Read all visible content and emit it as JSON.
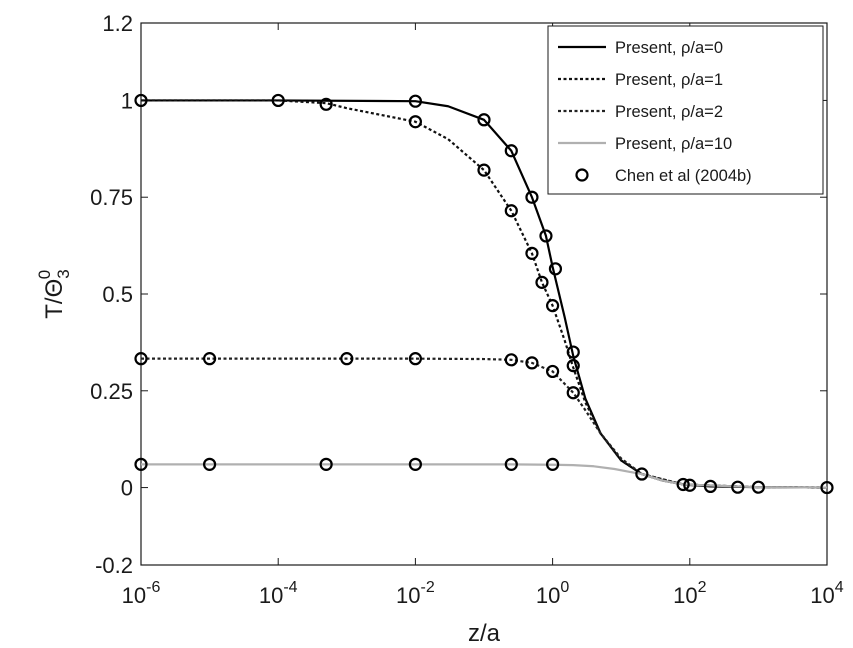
{
  "chart_data": {
    "type": "line",
    "xscale": "log",
    "xlim": [
      1e-06,
      10000
    ],
    "ylim": [
      -0.2,
      1.2
    ],
    "xlabel": "z/a",
    "ylabel": "T/Θ",
    "ylabel_sup": "0",
    "ylabel_sub": "3",
    "xticks": [
      {
        "value": 1e-06,
        "base": "10",
        "exp": "-6"
      },
      {
        "value": 0.0001,
        "base": "10",
        "exp": "-4"
      },
      {
        "value": 0.01,
        "base": "10",
        "exp": "-2"
      },
      {
        "value": 1,
        "base": "10",
        "exp": "0"
      },
      {
        "value": 100,
        "base": "10",
        "exp": "2"
      },
      {
        "value": 10000,
        "base": "10",
        "exp": "4"
      }
    ],
    "yticks": [
      {
        "value": -0.2,
        "label": "-0.2"
      },
      {
        "value": 0,
        "label": "0"
      },
      {
        "value": 0.25,
        "label": "0.25"
      },
      {
        "value": 0.5,
        "label": "0.5"
      },
      {
        "value": 0.75,
        "label": "0.75"
      },
      {
        "value": 1,
        "label": "1"
      },
      {
        "value": 1.2,
        "label": "1.2"
      }
    ],
    "grid": false,
    "legend_position": "top-right",
    "series": [
      {
        "name": "Present, ρ/a=0",
        "style": "solid",
        "color": "#000000",
        "x": [
          1e-06,
          0.0001,
          0.01,
          0.03,
          0.1,
          0.25,
          0.5,
          0.8,
          1,
          1.5,
          2,
          3,
          5,
          10,
          20,
          40,
          80,
          200,
          1000,
          10000
        ],
        "y": [
          1.0,
          1.0,
          0.998,
          0.985,
          0.95,
          0.87,
          0.75,
          0.65,
          0.57,
          0.44,
          0.34,
          0.23,
          0.14,
          0.07,
          0.035,
          0.018,
          0.008,
          0.003,
          0.001,
          0.0
        ]
      },
      {
        "name": "Present, ρ/a=1",
        "style": "dotted",
        "color": "#111111",
        "x": [
          1e-06,
          0.0001,
          0.0005,
          0.001,
          0.01,
          0.03,
          0.1,
          0.25,
          0.5,
          0.7,
          1,
          1.5,
          2,
          3,
          5,
          10,
          20,
          80,
          1000,
          10000
        ],
        "y": [
          1.0,
          1.0,
          0.993,
          0.98,
          0.945,
          0.9,
          0.82,
          0.715,
          0.605,
          0.53,
          0.47,
          0.38,
          0.31,
          0.22,
          0.14,
          0.07,
          0.035,
          0.008,
          0.001,
          0.0
        ]
      },
      {
        "name": "Present, ρ/a=2",
        "style": "dotted",
        "color": "#222222",
        "x": [
          1e-06,
          1e-05,
          0.001,
          0.01,
          0.1,
          0.25,
          0.5,
          1,
          2,
          3,
          5,
          10,
          20,
          80,
          1000,
          10000
        ],
        "y": [
          0.333,
          0.333,
          0.333,
          0.333,
          0.332,
          0.33,
          0.322,
          0.3,
          0.245,
          0.2,
          0.14,
          0.075,
          0.035,
          0.008,
          0.001,
          0.0
        ]
      },
      {
        "name": "Present, ρ/a=10",
        "style": "solid",
        "color": "#b0b0b0",
        "x": [
          1e-06,
          0.01,
          0.25,
          1,
          2,
          4,
          8,
          12,
          20,
          40,
          80,
          1000,
          10000
        ],
        "y": [
          0.06,
          0.06,
          0.06,
          0.059,
          0.058,
          0.055,
          0.048,
          0.042,
          0.035,
          0.018,
          0.008,
          0.001,
          0.0
        ]
      }
    ],
    "markers": {
      "name": "Chen et al (2004b)",
      "shape": "open-circle",
      "points": [
        {
          "x": 1e-06,
          "y": 1.0
        },
        {
          "x": 0.0001,
          "y": 1.0
        },
        {
          "x": 0.0005,
          "y": 0.99
        },
        {
          "x": 0.01,
          "y": 0.998
        },
        {
          "x": 0.01,
          "y": 0.945
        },
        {
          "x": 0.1,
          "y": 0.95
        },
        {
          "x": 0.1,
          "y": 0.82
        },
        {
          "x": 0.25,
          "y": 0.87
        },
        {
          "x": 0.25,
          "y": 0.715
        },
        {
          "x": 0.5,
          "y": 0.75
        },
        {
          "x": 0.5,
          "y": 0.605
        },
        {
          "x": 0.8,
          "y": 0.65
        },
        {
          "x": 0.7,
          "y": 0.53
        },
        {
          "x": 1.1,
          "y": 0.565
        },
        {
          "x": 1.0,
          "y": 0.47
        },
        {
          "x": 2.0,
          "y": 0.35
        },
        {
          "x": 2.0,
          "y": 0.315
        },
        {
          "x": 1e-06,
          "y": 0.333
        },
        {
          "x": 1e-05,
          "y": 0.333
        },
        {
          "x": 0.001,
          "y": 0.333
        },
        {
          "x": 0.01,
          "y": 0.333
        },
        {
          "x": 0.25,
          "y": 0.33
        },
        {
          "x": 0.5,
          "y": 0.322
        },
        {
          "x": 1.0,
          "y": 0.3
        },
        {
          "x": 2.0,
          "y": 0.245
        },
        {
          "x": 1e-06,
          "y": 0.06
        },
        {
          "x": 1e-05,
          "y": 0.06
        },
        {
          "x": 0.0005,
          "y": 0.06
        },
        {
          "x": 0.01,
          "y": 0.06
        },
        {
          "x": 0.25,
          "y": 0.06
        },
        {
          "x": 1.0,
          "y": 0.06
        },
        {
          "x": 20,
          "y": 0.035
        },
        {
          "x": 80,
          "y": 0.008
        },
        {
          "x": 100,
          "y": 0.006
        },
        {
          "x": 200,
          "y": 0.003
        },
        {
          "x": 500,
          "y": 0.001
        },
        {
          "x": 1000,
          "y": 0.001
        },
        {
          "x": 10000,
          "y": 0.0
        }
      ]
    }
  }
}
